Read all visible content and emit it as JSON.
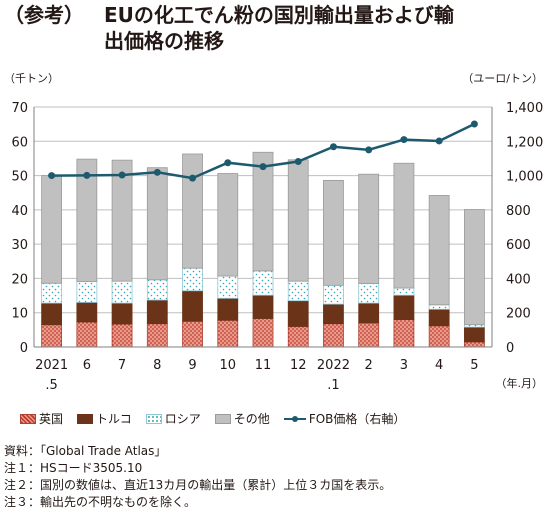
{
  "title": {
    "prefix": "（参考）",
    "line1": "EUの化工でん粉の国別輸出量および輸",
    "line2": "出価格の推移"
  },
  "colors": {
    "uk": "#d9695a",
    "turkey": "#6b3318",
    "russia": "#5fb8c9",
    "other": "#c0c0c0",
    "fob": "#1e5a6e",
    "grid": "#bfbfbf"
  },
  "chart_data": {
    "type": "bar",
    "stacked": true,
    "left_unit": "（千トン）",
    "right_unit": "（ユーロ/トン）",
    "x_unit": "（年.月）",
    "categories": [
      "2021\n.5",
      "6",
      "7",
      "8",
      "9",
      "10",
      "11",
      "12",
      "2022\n.1",
      "2",
      "3",
      "4",
      "5"
    ],
    "ylim": [
      0,
      70
    ],
    "y_ticks": [
      0,
      10,
      20,
      30,
      40,
      50,
      60,
      70
    ],
    "y2lim": [
      0,
      1400
    ],
    "y2_ticks": [
      0,
      200,
      400,
      600,
      800,
      "1,000",
      "1,200",
      "1,400"
    ],
    "grid": true,
    "series": [
      {
        "name": "英国",
        "axis": "left",
        "values": [
          6.5,
          7.3,
          6.7,
          6.8,
          7.5,
          7.8,
          8.3,
          6.0,
          6.8,
          7.0,
          8.0,
          6.2,
          1.5
        ]
      },
      {
        "name": "トルコ",
        "axis": "left",
        "values": [
          6.3,
          5.7,
          6.1,
          6.9,
          8.9,
          6.4,
          6.8,
          7.5,
          5.7,
          5.8,
          7.1,
          4.8,
          4.3
        ]
      },
      {
        "name": "ロシア",
        "axis": "left",
        "values": [
          5.8,
          6.1,
          6.4,
          5.9,
          6.6,
          6.5,
          7.1,
          5.7,
          5.5,
          5.7,
          2.1,
          1.3,
          0.7
        ]
      },
      {
        "name": "その他",
        "axis": "left",
        "values": [
          31.4,
          35.7,
          35.3,
          32.7,
          33.3,
          29.9,
          34.6,
          35.4,
          30.6,
          31.9,
          36.4,
          31.9,
          33.6
        ]
      },
      {
        "name": "FOB価格（右軸）",
        "axis": "right",
        "type": "line",
        "values": [
          1000,
          1001,
          1003,
          1019,
          985,
          1075,
          1052,
          1082,
          1168,
          1150,
          1210,
          1202,
          1301
        ]
      }
    ],
    "legend_position": "bottom"
  },
  "notes": [
    "資料：「Global Trade Atlas」",
    "注１：HSコード3505.10",
    "注２：国別の数値は、直近13カ月の輸出量（累計）上位３カ国を表示。",
    "注３：輸出先の不明なものを除く。"
  ]
}
